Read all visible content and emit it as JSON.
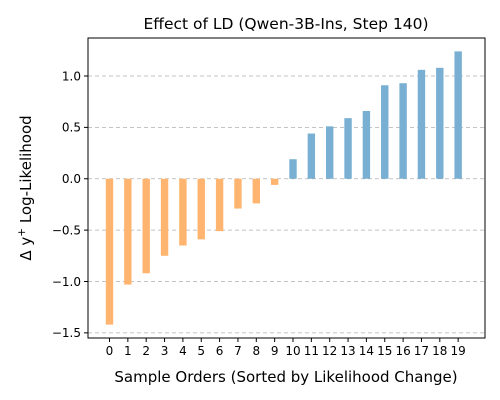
{
  "chart_data": {
    "type": "bar",
    "title": "Effect of LD (Qwen-3B-Ins, Step 140)",
    "xlabel": "Sample Orders (Sorted by Likelihood Change)",
    "ylabel_base": "Δ y",
    "ylabel_sup": "+",
    "ylabel_rest": " Log-Likelihood",
    "categories": [
      "0",
      "1",
      "2",
      "3",
      "4",
      "5",
      "6",
      "7",
      "8",
      "9",
      "10",
      "11",
      "12",
      "13",
      "14",
      "15",
      "16",
      "17",
      "18",
      "19"
    ],
    "values": [
      -1.42,
      -1.03,
      -0.92,
      -0.75,
      -0.65,
      -0.59,
      -0.51,
      -0.29,
      -0.24,
      -0.06,
      0.19,
      0.44,
      0.51,
      0.59,
      0.66,
      0.91,
      0.93,
      1.06,
      1.08,
      1.24
    ],
    "ylim": [
      -1.55,
      1.37
    ],
    "yticks": [
      -1.5,
      -1.0,
      -0.5,
      0.0,
      0.5,
      1.0
    ],
    "ytick_labels": [
      "−1.5",
      "−1.0",
      "−0.5",
      "0.0",
      "0.5",
      "1.0"
    ],
    "grid": true,
    "colors": {
      "negative": "#ffb570",
      "positive": "#78afd2"
    }
  }
}
